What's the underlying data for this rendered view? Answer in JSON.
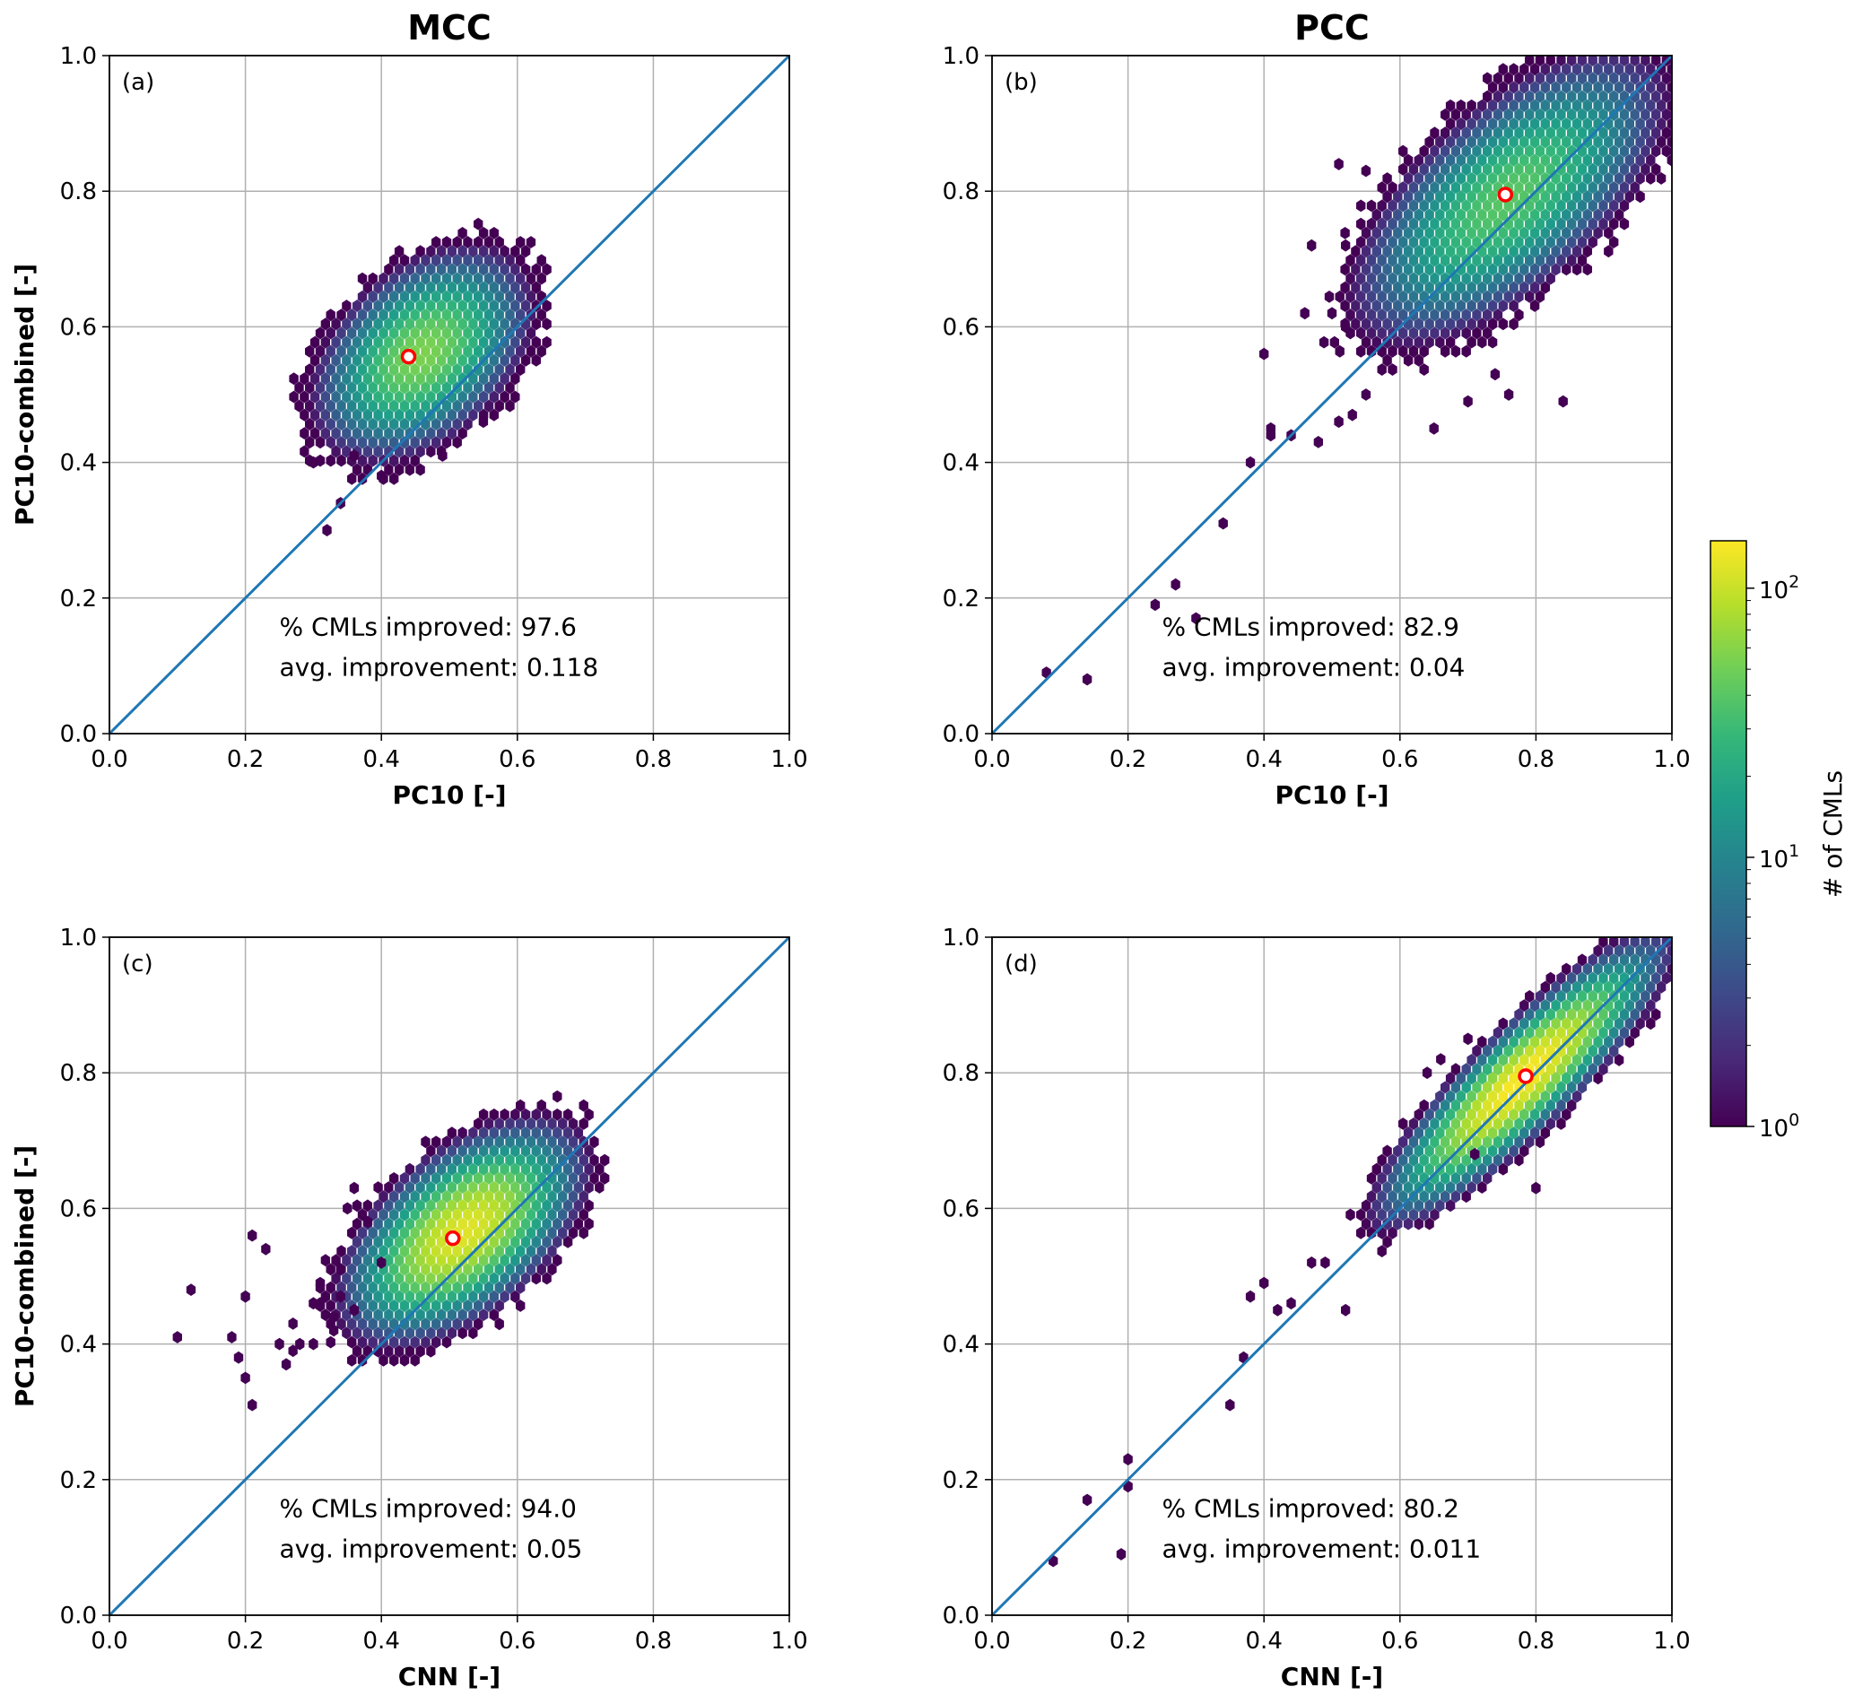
{
  "colors": {
    "diagonal": "#1f77b4",
    "grid": "#b0b0b0",
    "mean_marker_edge": "#ff0000",
    "colormap": [
      "#440154",
      "#482878",
      "#3e4989",
      "#31688e",
      "#26828e",
      "#1f9e89",
      "#35b779",
      "#6ece58",
      "#b5de2b",
      "#fde725"
    ]
  },
  "column_titles": [
    "MCC",
    "PCC"
  ],
  "colorbar": {
    "label": "# of CMLs",
    "scale": "log",
    "range": [
      1,
      150
    ],
    "ticks": [
      {
        "value": 1,
        "base": "10",
        "exp": "0"
      },
      {
        "value": 10,
        "base": "10",
        "exp": "1"
      },
      {
        "value": 100,
        "base": "10",
        "exp": "2"
      }
    ]
  },
  "chart_data": [
    {
      "type": "hexbin",
      "panel": "(a)",
      "xlabel": "PC10 [-]",
      "ylabel": "PC10-combined [-]",
      "xlim": [
        0,
        1
      ],
      "ylim": [
        0,
        1
      ],
      "xticks": [
        "0.0",
        "0.2",
        "0.4",
        "0.6",
        "0.8",
        "1.0"
      ],
      "yticks": [
        "0.0",
        "0.2",
        "0.4",
        "0.6",
        "0.8",
        "1.0"
      ],
      "grid": true,
      "diagonal": true,
      "mean": [
        0.44,
        0.556
      ],
      "annotation": [
        "% CMLs improved: 97.6",
        "avg. improvement: 0.118"
      ],
      "cluster": {
        "center": [
          0.46,
          0.56
        ],
        "sd": [
          0.065,
          0.055
        ],
        "dir": [
          0.72,
          0.69
        ],
        "spread_along": 0.07,
        "spread_across": 0.045,
        "peak": 55
      },
      "outliers": [
        [
          0.32,
          0.3
        ],
        [
          0.34,
          0.34
        ],
        [
          0.4,
          0.38
        ],
        [
          0.49,
          0.41
        ],
        [
          0.55,
          0.46
        ],
        [
          0.3,
          0.4
        ],
        [
          0.36,
          0.41
        ]
      ]
    },
    {
      "type": "hexbin",
      "panel": "(b)",
      "xlabel": "PC10 [-]",
      "ylabel": "",
      "xlim": [
        0,
        1
      ],
      "ylim": [
        0,
        1
      ],
      "xticks": [
        "0.0",
        "0.2",
        "0.4",
        "0.6",
        "0.8",
        "1.0"
      ],
      "yticks": [
        "0.0",
        "0.2",
        "0.4",
        "0.6",
        "0.8",
        "1.0"
      ],
      "grid": true,
      "diagonal": true,
      "mean": [
        0.755,
        0.795
      ],
      "annotation": [
        "% CMLs improved: 82.9",
        "avg. improvement: 0.04"
      ],
      "cluster": {
        "center": [
          0.76,
          0.79
        ],
        "sd": [
          0.1,
          0.08
        ],
        "dir": [
          0.74,
          0.67
        ],
        "spread_along": 0.11,
        "spread_across": 0.05,
        "peak": 40
      },
      "outliers": [
        [
          0.08,
          0.09
        ],
        [
          0.14,
          0.08
        ],
        [
          0.24,
          0.19
        ],
        [
          0.27,
          0.22
        ],
        [
          0.3,
          0.17
        ],
        [
          0.34,
          0.31
        ],
        [
          0.38,
          0.4
        ],
        [
          0.4,
          0.56
        ],
        [
          0.41,
          0.45
        ],
        [
          0.41,
          0.44
        ],
        [
          0.44,
          0.44
        ],
        [
          0.48,
          0.43
        ],
        [
          0.51,
          0.46
        ],
        [
          0.65,
          0.45
        ],
        [
          0.7,
          0.49
        ],
        [
          0.74,
          0.53
        ],
        [
          0.76,
          0.5
        ],
        [
          0.84,
          0.49
        ],
        [
          0.52,
          0.72
        ],
        [
          0.47,
          0.72
        ],
        [
          0.51,
          0.84
        ],
        [
          0.55,
          0.83
        ],
        [
          0.52,
          0.6
        ],
        [
          0.46,
          0.62
        ],
        [
          0.5,
          0.62
        ],
        [
          0.55,
          0.5
        ],
        [
          0.53,
          0.47
        ]
      ]
    },
    {
      "type": "hexbin",
      "panel": "(c)",
      "xlabel": "CNN [-]",
      "ylabel": "PC10-combined [-]",
      "xlim": [
        0,
        1
      ],
      "ylim": [
        0,
        1
      ],
      "xticks": [
        "0.0",
        "0.2",
        "0.4",
        "0.6",
        "0.8",
        "1.0"
      ],
      "yticks": [
        "0.0",
        "0.2",
        "0.4",
        "0.6",
        "0.8",
        "1.0"
      ],
      "grid": true,
      "diagonal": true,
      "mean": [
        0.505,
        0.556
      ],
      "annotation": [
        "% CMLs improved: 94.0",
        "avg. improvement: 0.05"
      ],
      "cluster": {
        "center": [
          0.52,
          0.565
        ],
        "sd": [
          0.07,
          0.055
        ],
        "dir": [
          0.76,
          0.65
        ],
        "spread_along": 0.075,
        "spread_across": 0.04,
        "peak": 120
      },
      "outliers": [
        [
          0.1,
          0.41
        ],
        [
          0.12,
          0.48
        ],
        [
          0.18,
          0.41
        ],
        [
          0.19,
          0.38
        ],
        [
          0.2,
          0.35
        ],
        [
          0.21,
          0.31
        ],
        [
          0.2,
          0.47
        ],
        [
          0.21,
          0.56
        ],
        [
          0.23,
          0.54
        ],
        [
          0.25,
          0.4
        ],
        [
          0.26,
          0.37
        ],
        [
          0.27,
          0.43
        ],
        [
          0.27,
          0.39
        ],
        [
          0.28,
          0.4
        ],
        [
          0.3,
          0.4
        ],
        [
          0.3,
          0.46
        ],
        [
          0.31,
          0.49
        ],
        [
          0.31,
          0.46
        ],
        [
          0.33,
          0.44
        ],
        [
          0.33,
          0.42
        ],
        [
          0.34,
          0.47
        ],
        [
          0.36,
          0.45
        ],
        [
          0.34,
          0.51
        ],
        [
          0.36,
          0.63
        ],
        [
          0.35,
          0.6
        ],
        [
          0.38,
          0.58
        ],
        [
          0.4,
          0.52
        ]
      ]
    },
    {
      "type": "hexbin",
      "panel": "(d)",
      "xlabel": "CNN [-]",
      "ylabel": "",
      "xlim": [
        0,
        1
      ],
      "ylim": [
        0,
        1
      ],
      "xticks": [
        "0.0",
        "0.2",
        "0.4",
        "0.6",
        "0.8",
        "1.0"
      ],
      "yticks": [
        "0.0",
        "0.2",
        "0.4",
        "0.6",
        "0.8",
        "1.0"
      ],
      "grid": true,
      "diagonal": true,
      "mean": [
        0.785,
        0.795
      ],
      "annotation": [
        "% CMLs improved: 80.2",
        "avg. improvement: 0.011"
      ],
      "cluster": {
        "center": [
          0.78,
          0.79
        ],
        "sd": [
          0.09,
          0.08
        ],
        "dir": [
          0.71,
          0.7
        ],
        "spread_along": 0.1,
        "spread_across": 0.025,
        "peak": 150
      },
      "outliers": [
        [
          0.09,
          0.08
        ],
        [
          0.14,
          0.17
        ],
        [
          0.19,
          0.09
        ],
        [
          0.2,
          0.19
        ],
        [
          0.2,
          0.23
        ],
        [
          0.35,
          0.31
        ],
        [
          0.37,
          0.38
        ],
        [
          0.38,
          0.47
        ],
        [
          0.4,
          0.49
        ],
        [
          0.42,
          0.45
        ],
        [
          0.44,
          0.46
        ],
        [
          0.52,
          0.45
        ],
        [
          0.47,
          0.52
        ],
        [
          0.49,
          0.52
        ],
        [
          0.8,
          0.63
        ],
        [
          0.71,
          0.68
        ],
        [
          0.64,
          0.8
        ],
        [
          0.66,
          0.82
        ],
        [
          0.7,
          0.85
        ]
      ]
    }
  ]
}
